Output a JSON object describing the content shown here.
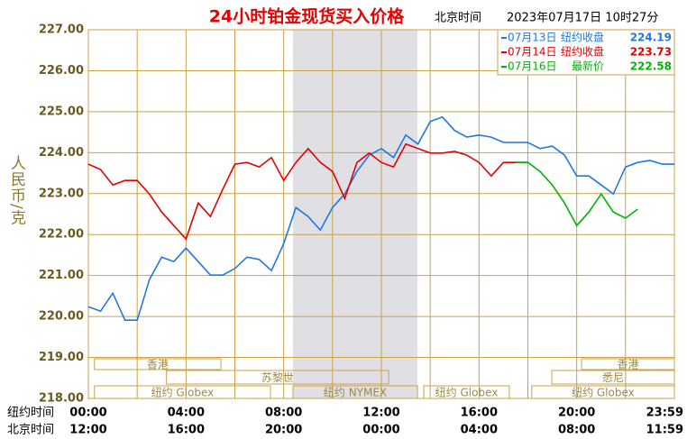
{
  "chart_data": {
    "type": "line",
    "title": "24小时铂金现货买入价格",
    "time_zone": "北京时间",
    "timestamp": "2023年07月17日 10时27分",
    "y_label": "人民币/克",
    "x_row_labels": [
      "纽约时间",
      "北京时间"
    ],
    "x": [
      0,
      0.5,
      1,
      1.5,
      2,
      2.5,
      3,
      3.5,
      4,
      4.5,
      5,
      5.5,
      6,
      6.5,
      7,
      7.5,
      8,
      8.5,
      9,
      9.5,
      10,
      10.5,
      11,
      11.5,
      12,
      12.5,
      13,
      13.5,
      14,
      14.5,
      15,
      15.5,
      16,
      16.5,
      17,
      17.5,
      18,
      18.5,
      19,
      19.5,
      20,
      20.5,
      21,
      21.5,
      22,
      22.5,
      23,
      23.5,
      24
    ],
    "xlim": [
      0,
      24
    ],
    "xticks": [
      {
        "value": 0,
        "label": "00:00"
      },
      {
        "value": 4,
        "label": "04:00"
      },
      {
        "value": 8,
        "label": "08:00"
      },
      {
        "value": 12,
        "label": "12:00"
      },
      {
        "value": 16,
        "label": "16:00"
      },
      {
        "value": 20,
        "label": "20:00"
      },
      {
        "value": 23.983,
        "label": "23:59"
      }
    ],
    "xticks2": [
      {
        "value": 0,
        "label": "12:00"
      },
      {
        "value": 4,
        "label": "16:00"
      },
      {
        "value": 8,
        "label": "20:00"
      },
      {
        "value": 12,
        "label": "00:00"
      },
      {
        "value": 16,
        "label": "04:00"
      },
      {
        "value": 20,
        "label": "08:00"
      },
      {
        "value": 23.983,
        "label": "11:59"
      }
    ],
    "xgrid": [
      0,
      2,
      4,
      6,
      8,
      10,
      12,
      14,
      16,
      18,
      20,
      22,
      24
    ],
    "ylim": [
      218,
      227
    ],
    "yticks": [
      {
        "value": 218,
        "label": "218.00"
      },
      {
        "value": 219,
        "label": "219.00"
      },
      {
        "value": 220,
        "label": "220.00"
      },
      {
        "value": 221,
        "label": "221.00"
      },
      {
        "value": 222,
        "label": "222.00"
      },
      {
        "value": 223,
        "label": "223.00"
      },
      {
        "value": 224,
        "label": "224.00"
      },
      {
        "value": 225,
        "label": "225.00"
      },
      {
        "value": 226,
        "label": "226.00"
      },
      {
        "value": 227,
        "label": "227.00"
      }
    ],
    "grid": true,
    "shaded": [
      8.38,
      13.48
    ],
    "sessions": [
      {
        "row": 0,
        "label": "香港",
        "range": [
          0.25,
          5.43
        ]
      },
      {
        "row": 0,
        "label": "香港",
        "range": [
          20.2,
          24
        ]
      },
      {
        "row": 1,
        "label": "苏黎世",
        "range": [
          3.2,
          12.3
        ]
      },
      {
        "row": 1,
        "label": "悉尼",
        "range": [
          18.98,
          24
        ]
      },
      {
        "row": 2,
        "label": "纽约 Globex",
        "range": [
          0.25,
          7.46
        ]
      },
      {
        "row": 2,
        "label": "纽约 NYMEX",
        "range": [
          8.38,
          13.48
        ]
      },
      {
        "row": 2,
        "label": "纽约 Globex",
        "range": [
          13.74,
          17.24
        ]
      },
      {
        "row": 2,
        "label": "纽约 Globex",
        "range": [
          18.16,
          24
        ]
      }
    ],
    "series": [
      {
        "name": "07月13日",
        "note": "纽约收盘",
        "last": 224.19,
        "color": "#1e78e6",
        "values": [
          220.24,
          220.13,
          220.57,
          219.91,
          219.91,
          220.9,
          221.45,
          221.34,
          221.67,
          221.34,
          221.01,
          221.01,
          221.17,
          221.45,
          221.39,
          221.12,
          221.78,
          222.66,
          222.44,
          222.11,
          222.66,
          222.99,
          223.54,
          223.94,
          224.1,
          223.88,
          224.43,
          224.21,
          224.76,
          224.87,
          224.54,
          224.38,
          224.43,
          224.38,
          224.25,
          224.25,
          224.25,
          224.1,
          224.16,
          223.94,
          223.43,
          223.43,
          223.21,
          222.99,
          223.65,
          223.76,
          223.81,
          223.72,
          223.72
        ]
      },
      {
        "name": "07月14日",
        "note": "纽约收盘",
        "last": 223.73,
        "color": "#e60000",
        "values": [
          223.72,
          223.59,
          223.21,
          223.32,
          223.32,
          222.99,
          222.55,
          222.22,
          221.89,
          222.77,
          222.44,
          223.1,
          223.72,
          223.76,
          223.65,
          223.88,
          223.32,
          223.76,
          224.1,
          223.76,
          223.54,
          222.88,
          223.76,
          223.99,
          223.76,
          223.65,
          224.21,
          224.1,
          223.99,
          223.99,
          224.03,
          223.94,
          223.76,
          223.43,
          223.76,
          223.76,
          223.76,
          null,
          null,
          null,
          null,
          null,
          null,
          null,
          null,
          null,
          null,
          null,
          null
        ]
      },
      {
        "name": "07月16日",
        "note": "最新价",
        "last": 222.58,
        "color": "#00b400",
        "values": [
          null,
          null,
          null,
          null,
          null,
          null,
          null,
          null,
          null,
          null,
          null,
          null,
          null,
          null,
          null,
          null,
          null,
          null,
          null,
          null,
          null,
          null,
          null,
          null,
          null,
          null,
          null,
          null,
          null,
          null,
          null,
          null,
          null,
          null,
          null,
          223.76,
          223.76,
          223.54,
          223.21,
          222.77,
          222.22,
          222.55,
          222.99,
          222.55,
          222.4,
          222.62,
          null,
          null,
          null
        ]
      }
    ]
  }
}
